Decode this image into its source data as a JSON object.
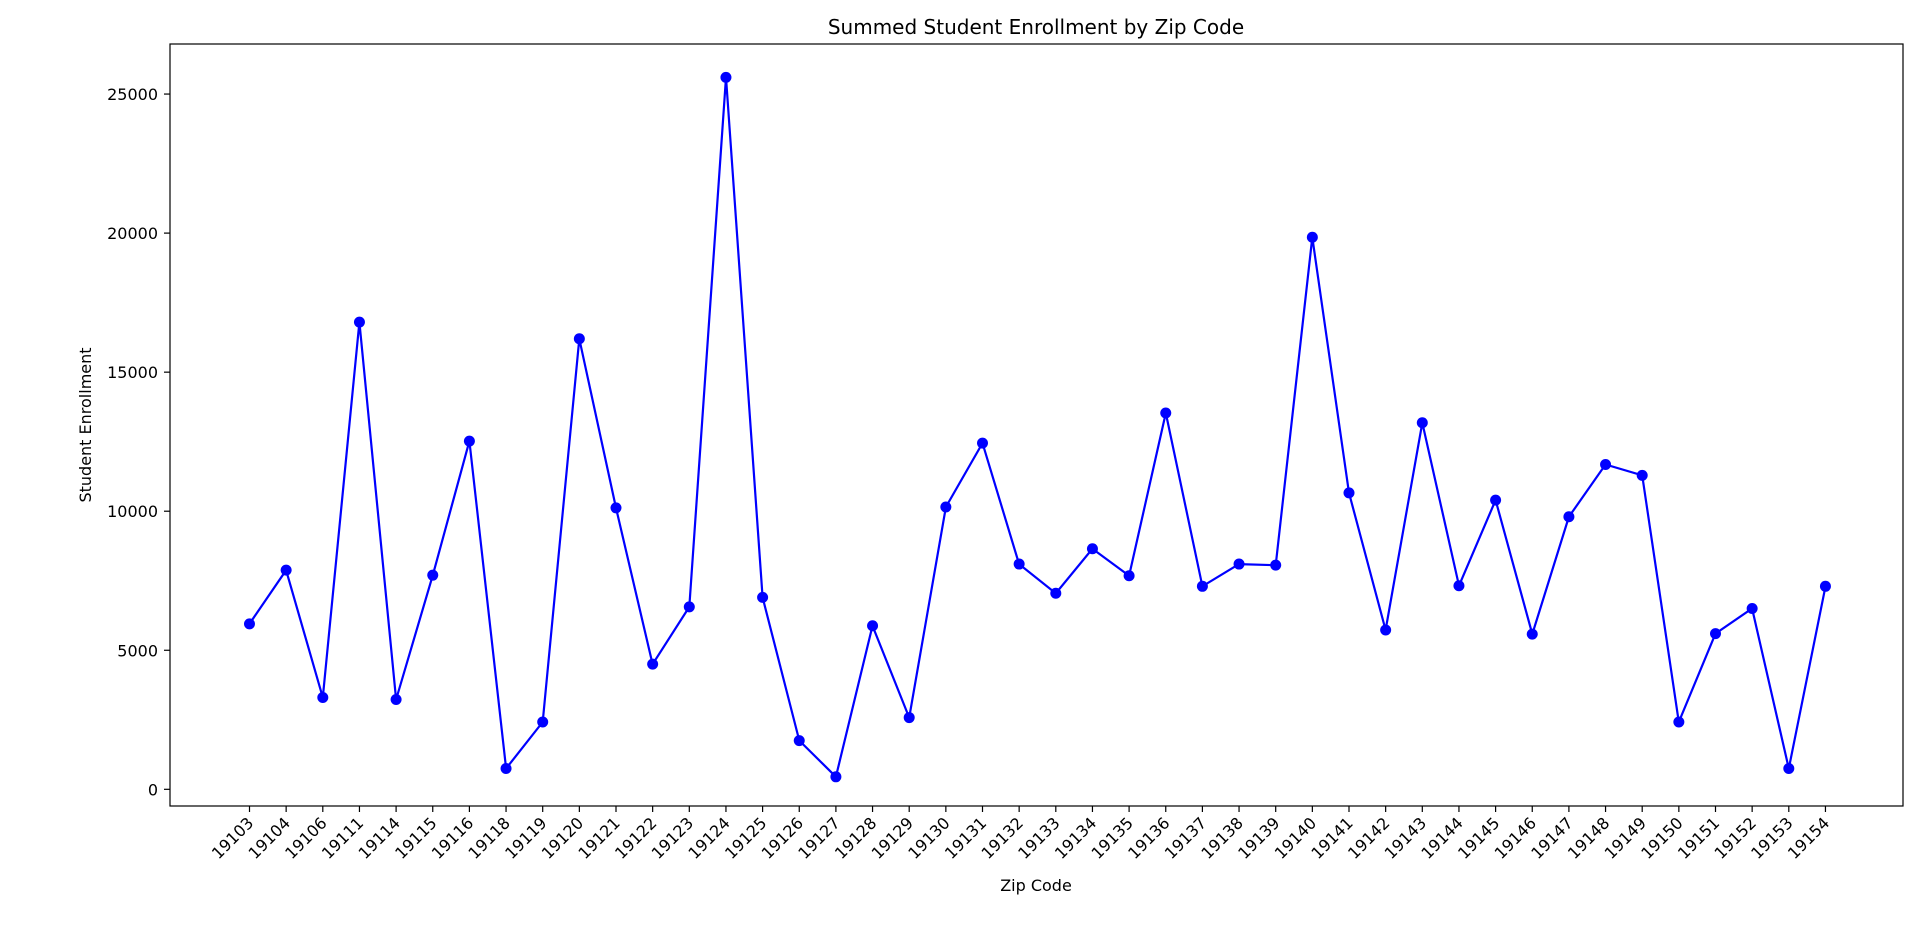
{
  "chart_data": {
    "type": "line",
    "title": "Summed Student Enrollment by Zip Code",
    "xlabel": "Zip Code",
    "ylabel": "Student Enrollment",
    "ylim": [
      -600,
      26800
    ],
    "yticks": [
      0,
      5000,
      10000,
      15000,
      20000,
      25000
    ],
    "grid": false,
    "legend": "none",
    "series_color": "#0000ff",
    "categories": [
      "19103",
      "19104",
      "19106",
      "19111",
      "19114",
      "19115",
      "19116",
      "19118",
      "19119",
      "19120",
      "19121",
      "19122",
      "19123",
      "19124",
      "19125",
      "19126",
      "19127",
      "19128",
      "19129",
      "19130",
      "19131",
      "19132",
      "19133",
      "19134",
      "19135",
      "19136",
      "19137",
      "19138",
      "19139",
      "19140",
      "19141",
      "19142",
      "19143",
      "19144",
      "19145",
      "19146",
      "19147",
      "19148",
      "19149",
      "19150",
      "19151",
      "19152",
      "19153",
      "19154"
    ],
    "series": [
      {
        "values": [
          5950,
          7880,
          3300,
          16800,
          3230,
          7700,
          12520,
          750,
          2420,
          16200,
          10120,
          4500,
          6560,
          25600,
          6900,
          1750,
          450,
          5880,
          2580,
          10150,
          12450,
          8100,
          7050,
          8650,
          7680,
          13530,
          7300,
          8100,
          8060,
          19850,
          10660,
          5730,
          13180,
          7320,
          10400,
          5580,
          9800,
          11680,
          11290,
          2420,
          5600,
          6500,
          750,
          7300
        ]
      }
    ]
  }
}
